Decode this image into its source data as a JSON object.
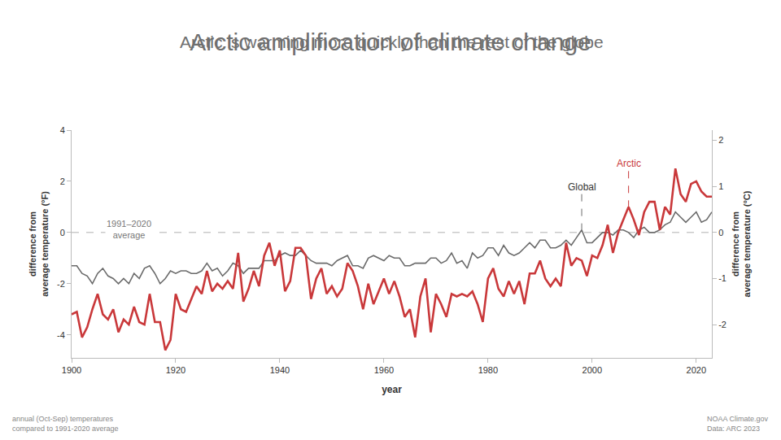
{
  "chart_data": {
    "type": "line",
    "title": "Arctic amplification of climate change",
    "subtitle": "Arctic is warming more quickly than the rest of the globe",
    "xlabel": "year",
    "ylabel": [
      "difference from",
      "average temperature (°F)"
    ],
    "y2label": [
      "difference from",
      "average temperature (°C)"
    ],
    "notes": [
      "annual (Oct-Sep) temperatures",
      "compared to 1991-2020 average"
    ],
    "source": [
      "NOAA Climate.gov",
      "Data: ARC 2023"
    ],
    "x": [
      1900,
      1901,
      1902,
      1903,
      1904,
      1905,
      1906,
      1907,
      1908,
      1909,
      1910,
      1911,
      1912,
      1913,
      1914,
      1915,
      1916,
      1917,
      1918,
      1919,
      1920,
      1921,
      1922,
      1923,
      1924,
      1925,
      1926,
      1927,
      1928,
      1929,
      1930,
      1931,
      1932,
      1933,
      1934,
      1935,
      1936,
      1937,
      1938,
      1939,
      1940,
      1941,
      1942,
      1943,
      1944,
      1945,
      1946,
      1947,
      1948,
      1949,
      1950,
      1951,
      1952,
      1953,
      1954,
      1955,
      1956,
      1957,
      1958,
      1959,
      1960,
      1961,
      1962,
      1963,
      1964,
      1965,
      1966,
      1967,
      1968,
      1969,
      1970,
      1971,
      1972,
      1973,
      1974,
      1975,
      1976,
      1977,
      1978,
      1979,
      1980,
      1981,
      1982,
      1983,
      1984,
      1985,
      1986,
      1987,
      1988,
      1989,
      1990,
      1991,
      1992,
      1993,
      1994,
      1995,
      1996,
      1997,
      1998,
      1999,
      2000,
      2001,
      2002,
      2003,
      2004,
      2005,
      2006,
      2007,
      2008,
      2009,
      2010,
      2011,
      2012,
      2013,
      2014,
      2015,
      2016,
      2017,
      2018,
      2019,
      2020,
      2021,
      2022,
      2023
    ],
    "series": [
      {
        "name": "Global",
        "color": "#6b6b6b",
        "values": [
          -1.3,
          -1.3,
          -1.6,
          -1.7,
          -2.0,
          -1.6,
          -1.4,
          -1.7,
          -1.8,
          -2.0,
          -1.8,
          -2.0,
          -1.6,
          -1.8,
          -1.4,
          -1.3,
          -1.6,
          -2.0,
          -1.8,
          -1.5,
          -1.6,
          -1.5,
          -1.5,
          -1.6,
          -1.6,
          -1.5,
          -1.2,
          -1.5,
          -1.4,
          -1.7,
          -1.5,
          -1.2,
          -1.3,
          -1.6,
          -1.4,
          -1.4,
          -1.4,
          -1.1,
          -1.1,
          -1.1,
          -0.9,
          -0.8,
          -0.9,
          -0.9,
          -0.7,
          -0.9,
          -1.1,
          -1.2,
          -1.2,
          -1.2,
          -1.3,
          -1.1,
          -1.0,
          -0.9,
          -1.3,
          -1.3,
          -1.4,
          -1.0,
          -0.9,
          -1.0,
          -1.1,
          -0.9,
          -1.0,
          -1.0,
          -1.3,
          -1.3,
          -1.2,
          -1.2,
          -1.2,
          -1.0,
          -1.0,
          -1.2,
          -1.1,
          -0.8,
          -1.2,
          -1.1,
          -1.4,
          -0.8,
          -1.0,
          -0.9,
          -0.6,
          -0.6,
          -0.9,
          -0.5,
          -0.8,
          -0.9,
          -0.8,
          -0.6,
          -0.4,
          -0.6,
          -0.3,
          -0.3,
          -0.6,
          -0.6,
          -0.5,
          -0.3,
          -0.5,
          -0.2,
          0.1,
          -0.4,
          -0.4,
          -0.2,
          0.0,
          0.0,
          -0.1,
          0.1,
          0.1,
          0.0,
          -0.2,
          0.1,
          0.2,
          0.0,
          0.0,
          0.1,
          0.3,
          0.4,
          0.8,
          0.6,
          0.4,
          0.6,
          0.8,
          0.4,
          0.5,
          0.8
        ]
      },
      {
        "name": "Arctic",
        "color": "#c9383a",
        "values": [
          -3.2,
          -3.1,
          -4.1,
          -3.7,
          -3.0,
          -2.4,
          -3.2,
          -3.4,
          -3.0,
          -3.9,
          -3.4,
          -3.6,
          -2.9,
          -3.5,
          -3.6,
          -2.4,
          -3.5,
          -3.5,
          -4.6,
          -4.2,
          -2.4,
          -3.0,
          -3.1,
          -2.6,
          -2.1,
          -2.4,
          -1.5,
          -2.3,
          -2.0,
          -2.2,
          -1.9,
          -2.2,
          -0.8,
          -2.7,
          -2.2,
          -1.5,
          -2.1,
          -0.9,
          -0.4,
          -1.3,
          -0.7,
          -2.3,
          -1.9,
          -0.6,
          -0.6,
          -0.9,
          -2.6,
          -1.8,
          -1.4,
          -2.4,
          -2.1,
          -2.5,
          -2.2,
          -1.2,
          -1.5,
          -2.1,
          -3.0,
          -2.0,
          -2.8,
          -2.3,
          -1.8,
          -2.4,
          -1.9,
          -2.5,
          -3.3,
          -3.0,
          -4.1,
          -2.5,
          -1.8,
          -3.9,
          -2.4,
          -2.8,
          -3.3,
          -2.4,
          -2.5,
          -2.4,
          -2.5,
          -2.3,
          -2.8,
          -3.5,
          -1.8,
          -1.4,
          -2.2,
          -2.5,
          -1.9,
          -2.4,
          -1.9,
          -2.8,
          -1.6,
          -1.6,
          -1.1,
          -1.8,
          -2.1,
          -1.8,
          -2.1,
          -0.4,
          -1.3,
          -1.0,
          -1.1,
          -1.7,
          -0.9,
          -1.0,
          -0.5,
          0.3,
          -0.8,
          0.0,
          0.5,
          1.0,
          0.5,
          -0.1,
          0.8,
          1.2,
          1.2,
          0.1,
          1.0,
          0.7,
          2.5,
          1.5,
          1.2,
          1.9,
          2.0,
          1.6,
          1.4,
          1.4
        ]
      }
    ],
    "xlim": [
      1900,
      2023
    ],
    "xticks": [
      1900,
      1920,
      1940,
      1960,
      1980,
      2000,
      2020
    ],
    "ylim": [
      -4.9,
      4.0
    ],
    "yticks": [
      -4,
      -2,
      0,
      2,
      4
    ],
    "y2lim": [
      -2.7222,
      2.2222
    ],
    "y2ticks": [
      -2,
      -1,
      0,
      1,
      2
    ],
    "reference_line": {
      "value": 0,
      "label": [
        "1991–2020",
        "average"
      ],
      "label_x": 1911
    },
    "annotations": [
      {
        "text": "Global",
        "x": 1998,
        "y": 1.5
      },
      {
        "text": "Arctic",
        "x": 2007,
        "y": 2.4
      }
    ],
    "grid": false,
    "legend": false
  }
}
